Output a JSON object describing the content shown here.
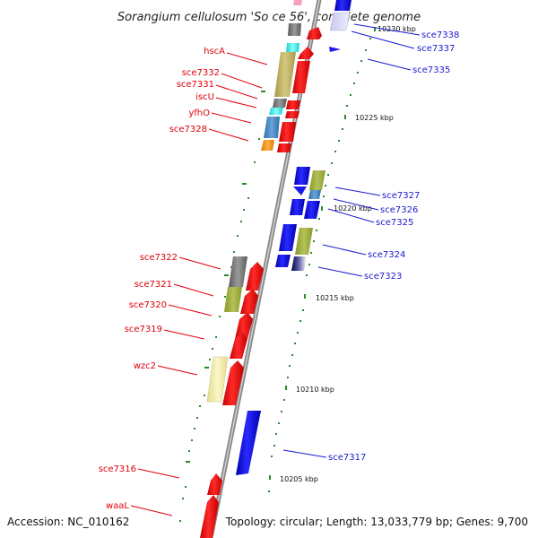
{
  "title": "Sorangium cellulosum 'So ce 56', complete genome",
  "accession": "Accession: NC_010162",
  "summary": "Topology: circular; Length: 13,033,779 bp; Genes: 9,700",
  "tick_labels": [
    "10230 kbp",
    "10225 kbp",
    "10220 kbp",
    "10215 kbp",
    "10210 kbp",
    "10205 kbp"
  ],
  "genes_left": [
    "hscA",
    "sce7332",
    "sce7331",
    "iscU",
    "yfhO",
    "sce7328",
    "sce7322",
    "sce7321",
    "sce7320",
    "sce7319",
    "wzc2",
    "sce7316",
    "waaL"
  ],
  "genes_right": [
    "sce7338",
    "sce7337",
    "sce7335",
    "sce7327",
    "sce7326",
    "sce7325",
    "sce7324",
    "sce7323",
    "sce7317"
  ],
  "colors": {
    "forward": "#ee1111",
    "reverse": "#1a1aee",
    "backbone": "#888888",
    "tick": "#2a8a2a",
    "label_left": "#e0000a",
    "label_right": "#1a1ad0"
  }
}
